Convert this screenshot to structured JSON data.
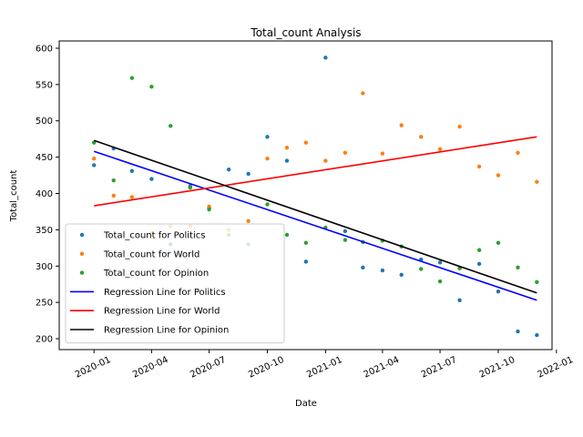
{
  "chart_data": {
    "type": "scatter",
    "title": "Total_count Analysis",
    "xlabel": "Date",
    "ylabel": "Total_count",
    "xlim": [
      "2019-11-07",
      "2021-12-25"
    ],
    "ylim": [
      185,
      610
    ],
    "x_ticks": [
      "2020-01",
      "2020-04",
      "2020-07",
      "2020-10",
      "2021-01",
      "2021-04",
      "2021-07",
      "2021-10",
      "2022-01"
    ],
    "y_ticks": [
      200,
      250,
      300,
      350,
      400,
      450,
      500,
      550,
      600
    ],
    "x_tick_rotation": 25,
    "legend_position": "lower-left",
    "grid": false,
    "dates": [
      "2020-01-01",
      "2020-02-01",
      "2020-03-01",
      "2020-04-01",
      "2020-05-01",
      "2020-06-01",
      "2020-07-01",
      "2020-08-01",
      "2020-09-01",
      "2020-10-01",
      "2020-11-01",
      "2020-12-01",
      "2021-01-01",
      "2021-02-01",
      "2021-03-01",
      "2021-04-01",
      "2021-05-01",
      "2021-06-01",
      "2021-07-01",
      "2021-08-01",
      "2021-09-01",
      "2021-10-01",
      "2021-11-01",
      "2021-12-01"
    ],
    "series": [
      {
        "name": "Total_count for Politics",
        "color": "#1f77b4",
        "values": [
          439,
          462,
          431,
          420,
          330,
          410,
          380,
          433,
          427,
          478,
          445,
          306,
          587,
          348,
          298,
          294,
          288,
          309,
          305,
          253,
          303,
          265,
          210,
          205
        ]
      },
      {
        "name": "Total_count for World",
        "color": "#ff7f0e",
        "values": [
          448,
          397,
          395,
          345,
          355,
          355,
          382,
          350,
          362,
          448,
          463,
          470,
          445,
          456,
          538,
          455,
          494,
          478,
          461,
          492,
          437,
          425,
          456,
          416
        ]
      },
      {
        "name": "Total_count for Opinion",
        "color": "#2ca02c",
        "values": [
          470,
          418,
          559,
          547,
          493,
          408,
          378,
          343,
          330,
          385,
          343,
          332,
          353,
          336,
          333,
          335,
          327,
          296,
          279,
          297,
          322,
          332,
          298,
          278
        ]
      }
    ],
    "regression_lines": [
      {
        "name": "Regression Line for Politics",
        "color": "#0000ff",
        "start": [
          "2020-01-01",
          458
        ],
        "end": [
          "2021-12-01",
          253
        ]
      },
      {
        "name": "Regression Line for World",
        "color": "#ff0000",
        "start": [
          "2020-01-01",
          383
        ],
        "end": [
          "2021-12-01",
          478
        ]
      },
      {
        "name": "Regression Line for Opinion",
        "color": "#000000",
        "start": [
          "2020-01-01",
          473
        ],
        "end": [
          "2021-12-01",
          263
        ]
      }
    ]
  }
}
